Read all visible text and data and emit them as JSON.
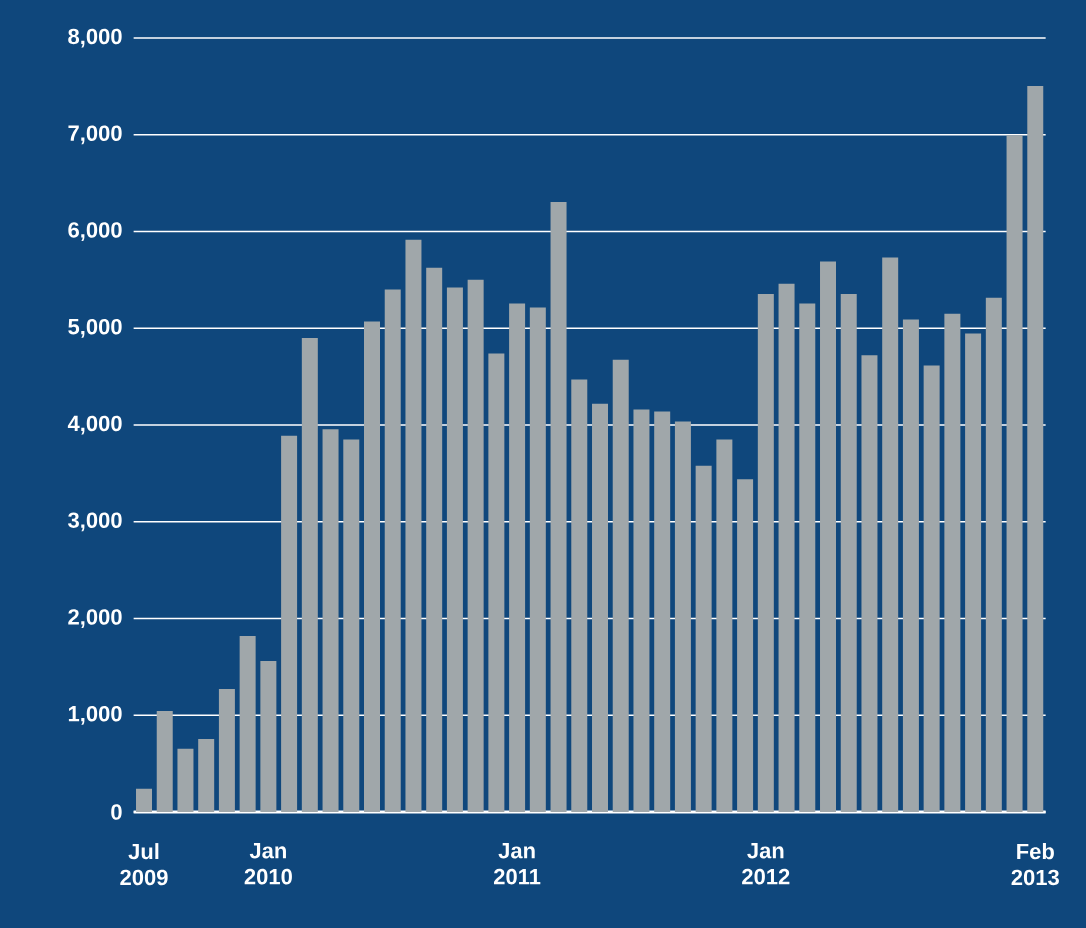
{
  "chart_data": {
    "type": "bar",
    "categories": [
      "Jul 2009",
      null,
      null,
      null,
      null,
      null,
      "Jan 2010",
      null,
      null,
      null,
      null,
      null,
      null,
      null,
      null,
      null,
      null,
      null,
      "Jan 2011",
      null,
      null,
      null,
      null,
      null,
      null,
      null,
      null,
      null,
      null,
      null,
      "Jan 2012",
      null,
      null,
      null,
      null,
      null,
      null,
      null,
      null,
      null,
      null,
      null,
      null,
      "Feb 2013"
    ],
    "values": [
      240,
      1045,
      655,
      755,
      1270,
      1820,
      1560,
      3890,
      4900,
      3955,
      3850,
      5070,
      5400,
      5915,
      5625,
      5420,
      5500,
      4740,
      5255,
      5215,
      6305,
      4470,
      4220,
      4675,
      4160,
      4140,
      4035,
      3580,
      3850,
      3440,
      5355,
      5460,
      5255,
      5690,
      5355,
      4720,
      5730,
      5090,
      4615,
      5150,
      4945,
      5315,
      6995,
      7505
    ],
    "color": "#a0a7aa",
    "ylim": [
      0,
      8000
    ],
    "yticks": [
      {
        "value": 0,
        "label": "0"
      },
      {
        "value": 1000,
        "label": "1,000"
      },
      {
        "value": 2000,
        "label": "2,000"
      },
      {
        "value": 3000,
        "label": "3,000"
      },
      {
        "value": 4000,
        "label": "4,000"
      },
      {
        "value": 5000,
        "label": "5,000"
      },
      {
        "value": 6000,
        "label": "6,000"
      },
      {
        "value": 7000,
        "label": "7,000"
      },
      {
        "value": 8000,
        "label": "8,000"
      }
    ],
    "grid": "y"
  }
}
